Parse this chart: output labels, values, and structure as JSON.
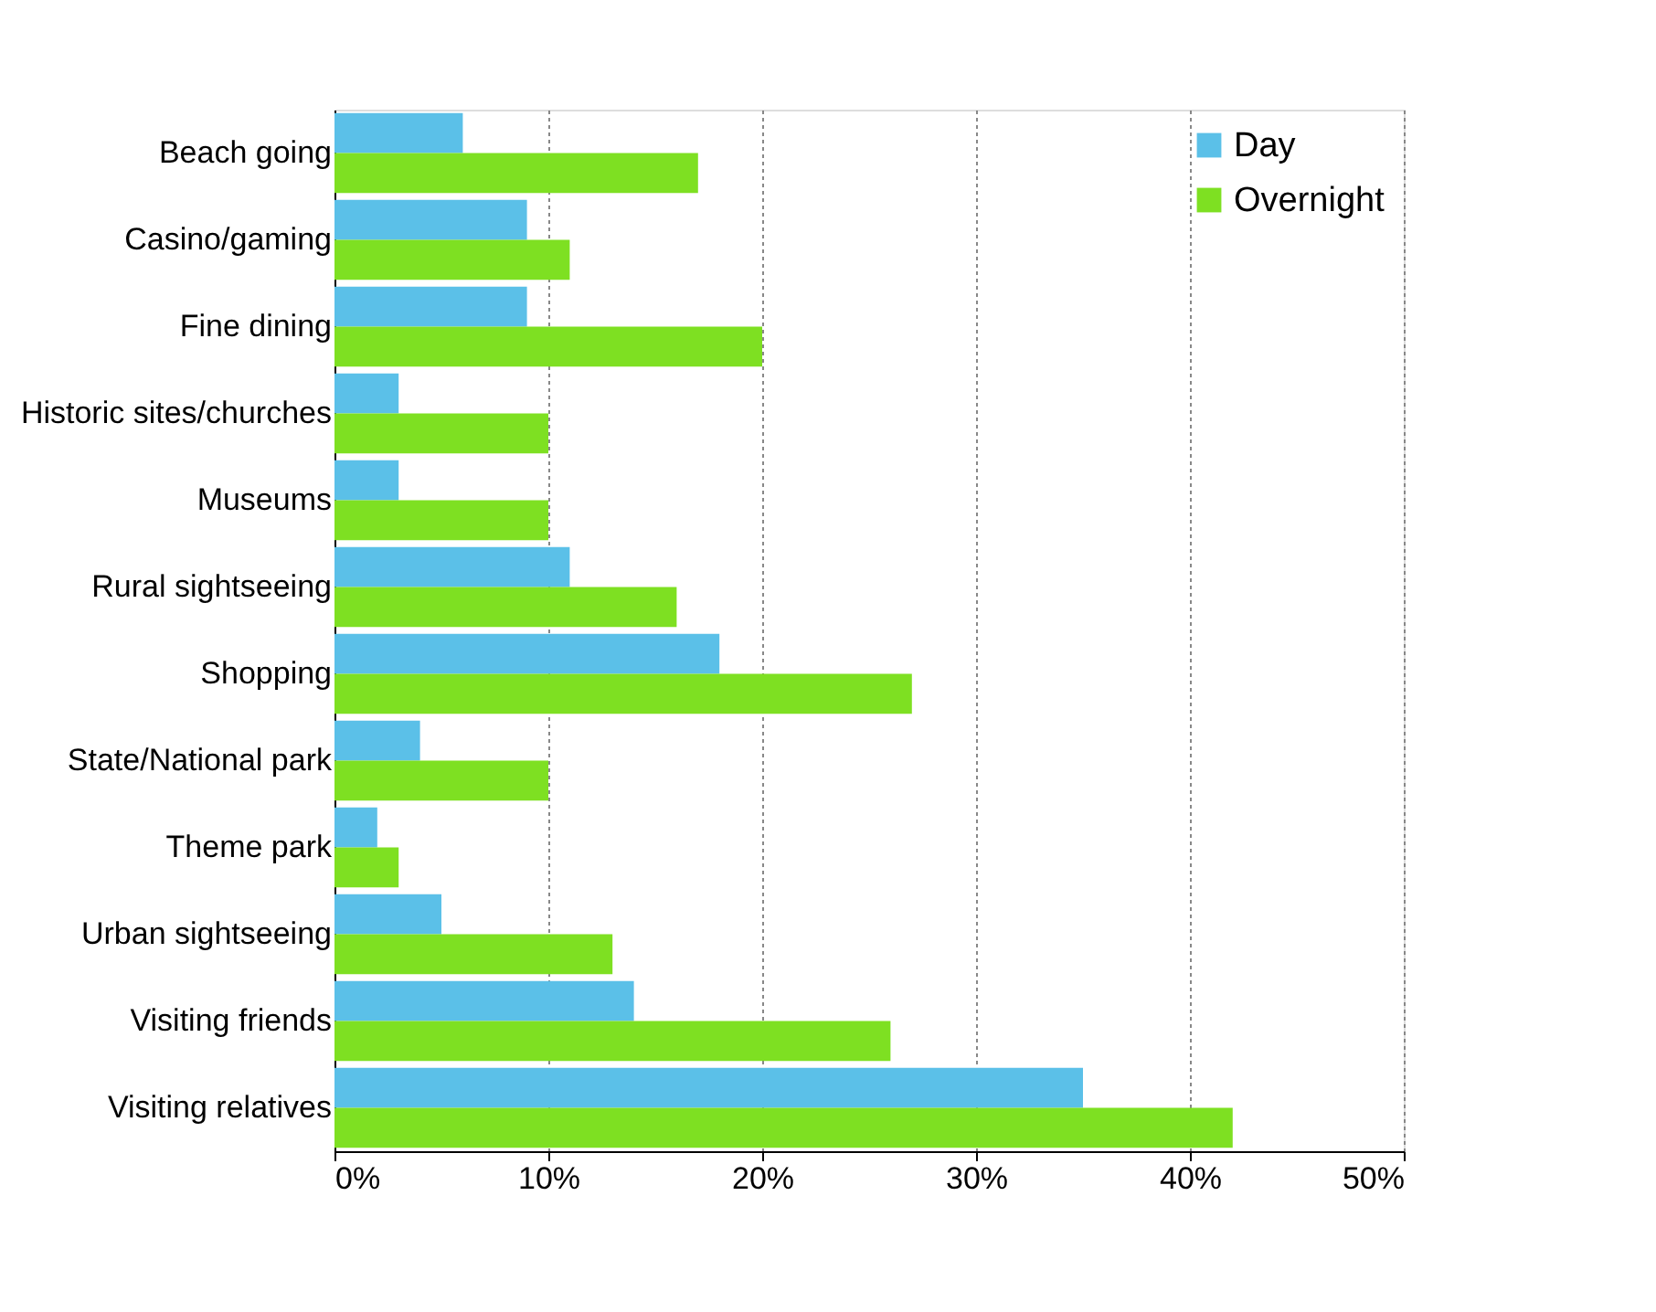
{
  "chart_data": {
    "type": "bar",
    "orientation": "horizontal",
    "categories": [
      "Beach going",
      "Casino/gaming",
      "Fine dining",
      "Historic sites/churches",
      "Museums",
      "Rural sightseeing",
      "Shopping",
      "State/National park",
      "Theme park",
      "Urban sightseeing",
      "Visiting friends",
      "Visiting relatives"
    ],
    "series": [
      {
        "name": "Day",
        "color": "#5bc0e8",
        "values": [
          6,
          9,
          9,
          3,
          3,
          11,
          18,
          4,
          2,
          5,
          14,
          35
        ]
      },
      {
        "name": "Overnight",
        "color": "#7ee022",
        "values": [
          17,
          11,
          20,
          10,
          10,
          16,
          27,
          10,
          3,
          13,
          26,
          42
        ]
      }
    ],
    "xlim": [
      0,
      50
    ],
    "xticks": [
      {
        "value": 0,
        "label": "0%"
      },
      {
        "value": 10,
        "label": "10%"
      },
      {
        "value": 20,
        "label": "20%"
      },
      {
        "value": 30,
        "label": "30%"
      },
      {
        "value": 40,
        "label": "40%"
      },
      {
        "value": 50,
        "label": "50%"
      }
    ],
    "grid": "x",
    "legend": "top right"
  }
}
